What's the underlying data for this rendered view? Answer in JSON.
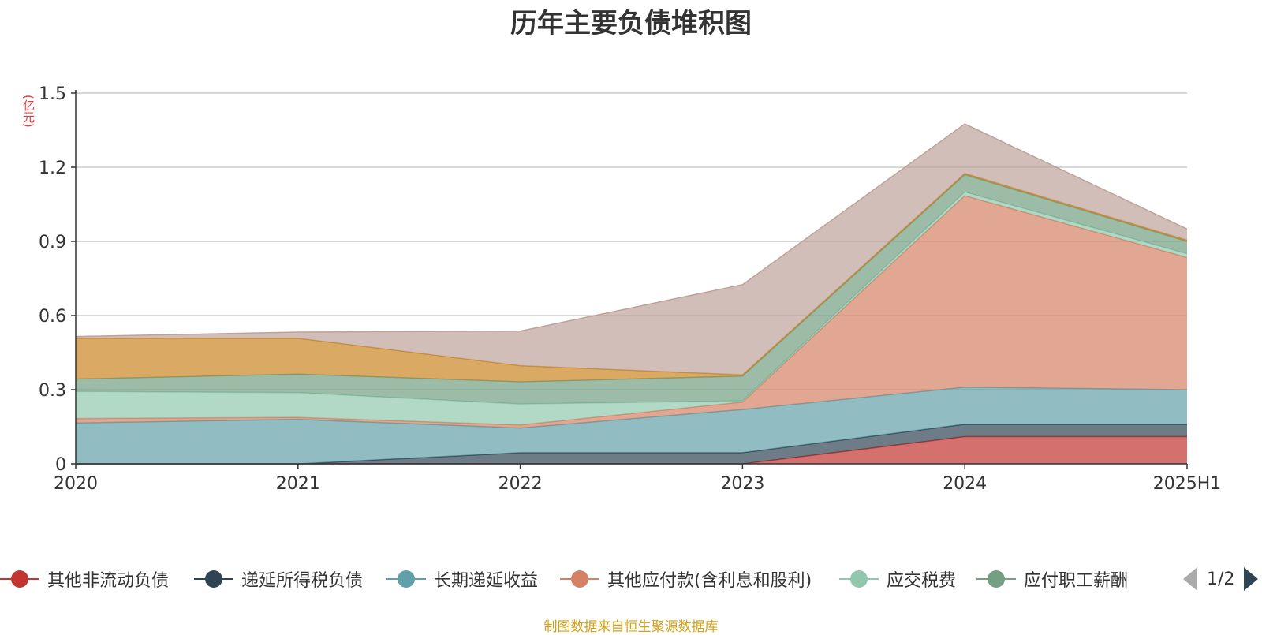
{
  "chart_data": {
    "type": "area",
    "title": "历年主要负债堆积图",
    "unit_label": "(亿元)",
    "categories": [
      "2020",
      "2021",
      "2022",
      "2023",
      "2024",
      "2025H1"
    ],
    "ylim": [
      0,
      1.5
    ],
    "yticks": [
      "0",
      "0.3",
      "0.6",
      "0.9",
      "1.2",
      "1.5"
    ],
    "grid": true,
    "stacked": true,
    "legend_position": "bottom",
    "series": [
      {
        "name": "其他非流动负债",
        "color": "#c23531",
        "values": [
          0,
          0,
          0,
          0,
          0.11,
          0.11
        ]
      },
      {
        "name": "递延所得税负债",
        "color": "#2f4554",
        "values": [
          0,
          0,
          0.045,
          0.045,
          0.05,
          0.05
        ]
      },
      {
        "name": "长期递延收益",
        "color": "#61a0a8",
        "values": [
          0.165,
          0.18,
          0.1,
          0.175,
          0.15,
          0.14
        ]
      },
      {
        "name": "其他应付款(含利息和股利)",
        "color": "#d48265",
        "values": [
          0.018,
          0.008,
          0.012,
          0.03,
          0.775,
          0.535
        ]
      },
      {
        "name": "应交税费",
        "color": "#91c7ae",
        "values": [
          0.11,
          0.1,
          0.085,
          0.005,
          0.015,
          0.015
        ]
      },
      {
        "name": "应付职工薪酬",
        "color": "#749f83",
        "values": [
          0.05,
          0.075,
          0.09,
          0.1,
          0.07,
          0.05
        ]
      },
      {
        "name": "",
        "color": "#ca8622",
        "values": [
          0.165,
          0.145,
          0.065,
          0.005,
          0.005,
          0.005
        ]
      },
      {
        "name": "",
        "color": "#bda29a",
        "values": [
          0.007,
          0.025,
          0.14,
          0.365,
          0.2,
          0.045
        ]
      }
    ]
  },
  "legend": {
    "page": "1/2"
  },
  "footer": {
    "source": "制图数据来自恒生聚源数据库"
  }
}
